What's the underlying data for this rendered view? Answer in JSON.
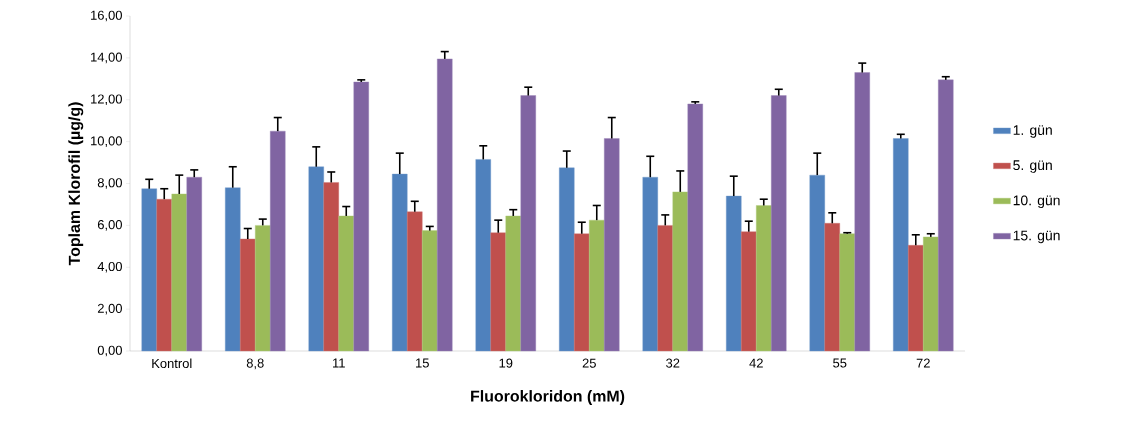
{
  "chart_data": {
    "type": "bar",
    "xlabel": "Fluorokloridon (mM)",
    "ylabel": "Toplam Klorofil (µg/g)",
    "categories": [
      "Kontrol",
      "8,8",
      "11",
      "15",
      "19",
      "25",
      "32",
      "42",
      "55",
      "72"
    ],
    "series": [
      {
        "name": "1. gün",
        "color": "#4f81bd",
        "values": [
          7.75,
          7.8,
          8.8,
          8.45,
          9.15,
          8.75,
          8.3,
          7.4,
          8.4,
          10.15
        ],
        "errors": [
          [
            7.75,
            8.2
          ],
          [
            7.8,
            8.8
          ],
          [
            8.8,
            9.75
          ],
          [
            8.45,
            9.45
          ],
          [
            9.15,
            9.8
          ],
          [
            8.75,
            9.55
          ],
          [
            8.3,
            9.3
          ],
          [
            7.4,
            8.35
          ],
          [
            8.4,
            9.45
          ],
          [
            10.15,
            10.35
          ]
        ]
      },
      {
        "name": "5. gün",
        "color": "#c0504d",
        "values": [
          7.25,
          5.35,
          8.05,
          6.65,
          5.65,
          5.6,
          6.0,
          5.7,
          6.1,
          5.05
        ],
        "errors": [
          [
            7.25,
            7.75
          ],
          [
            5.35,
            5.85
          ],
          [
            8.05,
            8.55
          ],
          [
            6.65,
            7.15
          ],
          [
            5.65,
            6.25
          ],
          [
            5.6,
            6.15
          ],
          [
            6.0,
            6.5
          ],
          [
            5.7,
            6.2
          ],
          [
            6.1,
            6.6
          ],
          [
            5.05,
            5.55
          ]
        ]
      },
      {
        "name": "10. gün",
        "color": "#9bbb59",
        "values": [
          7.5,
          6.0,
          6.45,
          5.75,
          6.45,
          6.25,
          7.6,
          6.95,
          5.6,
          5.45
        ],
        "errors": [
          [
            7.5,
            8.4
          ],
          [
            6.0,
            6.3
          ],
          [
            6.45,
            6.9
          ],
          [
            5.75,
            5.95
          ],
          [
            6.45,
            6.75
          ],
          [
            6.25,
            6.95
          ],
          [
            7.6,
            8.6
          ],
          [
            6.95,
            7.25
          ],
          [
            5.6,
            5.65
          ],
          [
            5.45,
            5.6
          ]
        ]
      },
      {
        "name": "15. gün",
        "color": "#8064a2",
        "values": [
          8.3,
          10.5,
          12.85,
          13.95,
          12.2,
          10.15,
          11.8,
          12.2,
          13.3,
          12.95
        ],
        "errors": [
          [
            8.3,
            8.65
          ],
          [
            10.5,
            11.15
          ],
          [
            12.85,
            12.95
          ],
          [
            13.95,
            14.3
          ],
          [
            12.2,
            12.6
          ],
          [
            10.15,
            11.15
          ],
          [
            11.8,
            11.9
          ],
          [
            12.2,
            12.5
          ],
          [
            13.3,
            13.75
          ],
          [
            12.95,
            13.1
          ]
        ]
      }
    ],
    "ylim": [
      0,
      16
    ],
    "yticks": [
      {
        "value": 0,
        "label": "0,00"
      },
      {
        "value": 2,
        "label": "2,00"
      },
      {
        "value": 4,
        "label": "4,00"
      },
      {
        "value": 6,
        "label": "6,00"
      },
      {
        "value": 8,
        "label": "8,00"
      },
      {
        "value": 10,
        "label": "10,00"
      },
      {
        "value": 12,
        "label": "12,00"
      },
      {
        "value": 14,
        "label": "14,00"
      },
      {
        "value": 16,
        "label": "16,00"
      }
    ],
    "grid": false,
    "legend": "right"
  }
}
